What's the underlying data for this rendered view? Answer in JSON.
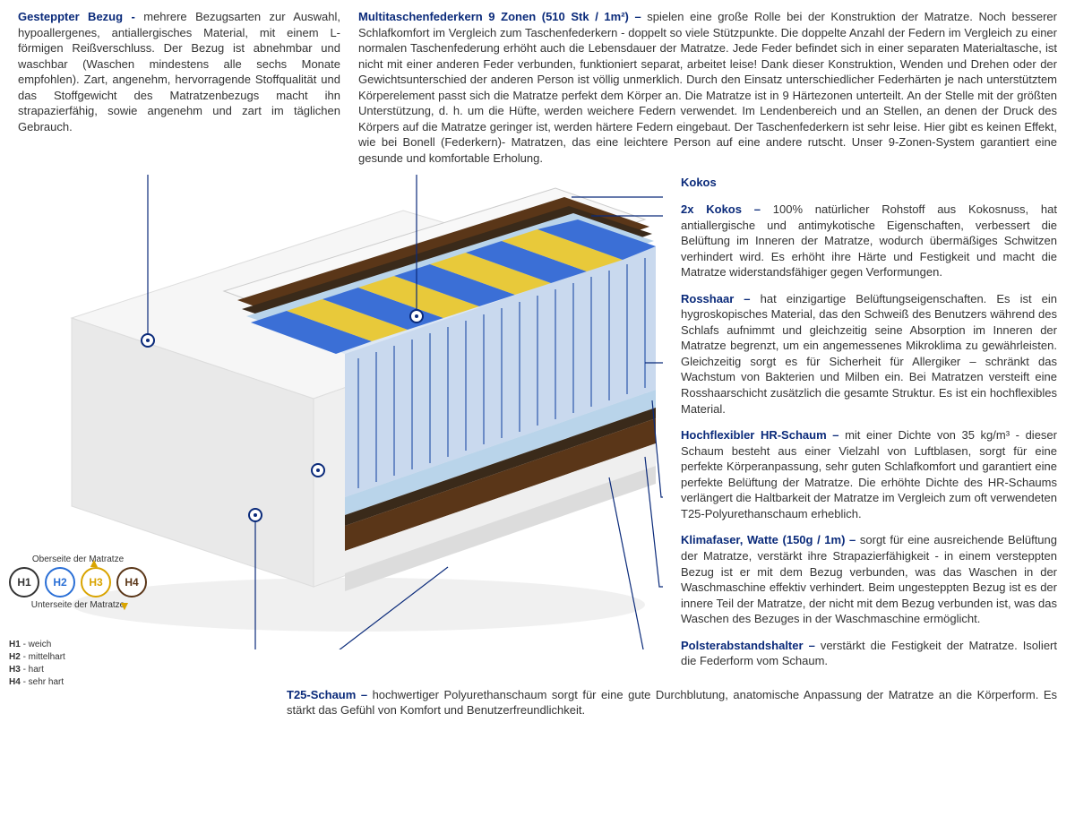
{
  "colors": {
    "headline": "#0a2a7a",
    "body_text": "#333333",
    "spring_main": "#3b6fd6",
    "spring_alt": "#e8c93a",
    "coco": "#5a3618",
    "foam_white": "#f2f2f2",
    "foam_gray": "#cfcfcf",
    "hr_foam": "#b9d4ea"
  },
  "top_left": {
    "title": "Gesteppter Bezug - ",
    "body": "mehrere Bezugsarten zur Auswahl, hypoallergenes, antiallergisches Material, mit einem L-förmigen Reißverschluss. Der Bezug ist abnehmbar und waschbar (Waschen mindestens alle sechs Monate empfohlen). Zart, angenehm, hervorragende Stoffqualität und das Stoffgewicht des Matratzenbezugs macht ihn strapazierfähig, sowie angenehm und zart im täglichen Gebrauch."
  },
  "top_right": {
    "title": "Multitaschenfederkern 9 Zonen (510 Stk / 1m²) – ",
    "body": "spielen eine große Rolle bei der Konstruktion der Matratze. Noch besserer Schlafkomfort im Vergleich zum Taschenfederkern - doppelt so viele Stützpunkte. Die doppelte Anzahl der Federn im Vergleich zu einer normalen Taschenfederung erhöht auch die Lebensdauer der Matratze. Jede Feder befindet sich in einer separaten Materialtasche, ist nicht mit einer anderen Feder verbunden, funktioniert separat, arbeitet leise! Dank dieser Konstruktion, Wenden und Drehen oder der Gewichtsunterschied der anderen Person ist völlig unmerklich. Durch den Einsatz unterschiedlicher Federhärten je nach unterstütztem Körperelement passt sich die Matratze perfekt dem Körper an. Die Matratze ist in 9 Härtezonen unterteilt. An der Stelle mit der größten Unterstützung, d. h. um die Hüfte, werden weichere Federn verwendet. Im Lendenbereich und an Stellen, an denen der Druck des Körpers auf die Matratze geringer ist, werden härtere Federn eingebaut. Der Taschenfederkern ist sehr leise. Hier gibt es keinen Effekt, wie bei Bonell (Federkern)- Matratzen, das eine leichtere Person auf eine andere rutscht. Unser 9-Zonen-System garantiert eine gesunde und komfortable Erholung."
  },
  "layers": {
    "kokos_label": "Kokos",
    "kokos2": {
      "title": "2x Kokos – ",
      "body": "100% natürlicher Rohstoff aus Kokosnuss, hat antiallergische und antimykotische Eigenschaften, verbessert die Belüftung im Inneren der Matratze, wodurch übermäßiges Schwitzen verhindert wird. Es erhöht ihre Härte und Festigkeit und macht die Matratze widerstandsfähiger gegen Verformungen."
    },
    "rosshaar": {
      "title": "Rosshaar – ",
      "body": "hat einzigartige Belüftungseigenschaften. Es ist ein hygroskopisches Material, das den Schweiß des Benutzers während des Schlafs aufnimmt und gleichzeitig seine Absorption im Inneren der Matratze begrenzt, um ein angemessenes Mikroklima zu gewährleisten. Gleichzeitig sorgt es für Sicherheit für Allergiker – schränkt das Wachstum von Bakterien und Milben ein. Bei Matratzen versteift eine Rosshaarschicht zusätzlich die gesamte Struktur. Es ist ein hochflexibles Material."
    },
    "hr": {
      "title": "Hochflexibler HR-Schaum – ",
      "body": "mit einer Dichte von 35 kg/m³ - dieser Schaum besteht aus einer Vielzahl von Luftblasen, sorgt für eine perfekte Körperanpassung, sehr guten Schlafkomfort und garantiert eine perfekte Belüftung der Matratze. Die erhöhte Dichte des HR-Schaums verlängert die Haltbarkeit der Matratze im Vergleich zum oft verwendeten T25-Polyurethanschaum erheblich."
    },
    "klima": {
      "title": "Klimafaser, Watte (150g / 1m) – ",
      "body": "sorgt für eine ausreichende Belüftung der Matratze, verstärkt ihre Strapazierfähigkeit - in einem versteppten Bezug ist er mit dem Bezug verbunden, was das Waschen in der Waschmaschine effektiv verhindert. Beim ungesteppten Bezug ist es der innere Teil der Matratze, der nicht mit dem Bezug verbunden ist, was das Waschen des Bezuges in der Waschmaschine ermöglicht."
    },
    "polster": {
      "title": "Polsterabstandshalter – ",
      "body": "verstärkt die Festigkeit der Matratze. Isoliert die Federform vom Schaum."
    },
    "t25": {
      "title": "T25-Schaum – ",
      "body": "hochwertiger Polyurethanschaum sorgt für eine gute Durchblutung, anatomische Anpassung der Matratze an die Körperform. Es stärkt das Gefühl von Komfort und Benutzerfreundlichkeit."
    }
  },
  "hardness": {
    "top_label": "Oberseite der Matratze",
    "bottom_label": "Unterseite der Matratze",
    "items": [
      {
        "code": "H1",
        "desc": "weich",
        "color": "#333333"
      },
      {
        "code": "H2",
        "desc": "mittelhart",
        "color": "#2a6fd6"
      },
      {
        "code": "H3",
        "desc": "hart",
        "color": "#d9a400"
      },
      {
        "code": "H4",
        "desc": "sehr hart",
        "color": "#5a3618"
      }
    ]
  }
}
